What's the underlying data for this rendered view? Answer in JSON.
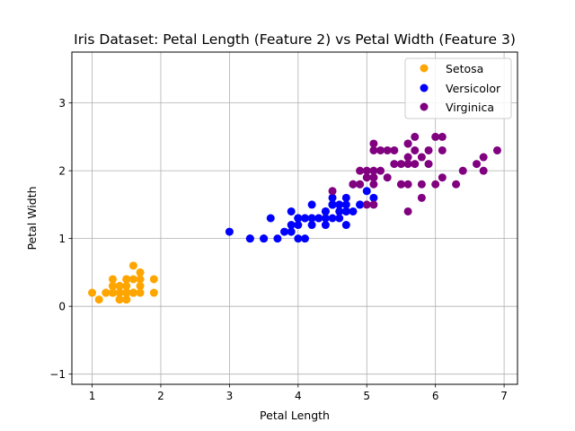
{
  "chart_data": {
    "type": "scatter",
    "title": "Iris Dataset: Petal Length (Feature 2) vs Petal Width (Feature 3)",
    "xlabel": "Petal Length",
    "ylabel": "Petal Width",
    "xlim": [
      0.705,
      7.195
    ],
    "ylim": [
      -1.15,
      3.75
    ],
    "xticks": [
      "1",
      "2",
      "3",
      "4",
      "5",
      "6",
      "7"
    ],
    "yticks": [
      "−1",
      "0",
      "1",
      "2",
      "3"
    ],
    "grid": true,
    "legend_position": "top-right",
    "series": [
      {
        "name": "Setosa",
        "color": "#ffa500",
        "points": [
          [
            1.4,
            0.2
          ],
          [
            1.4,
            0.2
          ],
          [
            1.3,
            0.2
          ],
          [
            1.5,
            0.2
          ],
          [
            1.4,
            0.2
          ],
          [
            1.7,
            0.4
          ],
          [
            1.4,
            0.3
          ],
          [
            1.5,
            0.2
          ],
          [
            1.4,
            0.2
          ],
          [
            1.5,
            0.1
          ],
          [
            1.5,
            0.2
          ],
          [
            1.6,
            0.2
          ],
          [
            1.4,
            0.1
          ],
          [
            1.1,
            0.1
          ],
          [
            1.2,
            0.2
          ],
          [
            1.5,
            0.4
          ],
          [
            1.3,
            0.4
          ],
          [
            1.4,
            0.3
          ],
          [
            1.7,
            0.3
          ],
          [
            1.5,
            0.3
          ],
          [
            1.7,
            0.2
          ],
          [
            1.5,
            0.4
          ],
          [
            1.0,
            0.2
          ],
          [
            1.7,
            0.5
          ],
          [
            1.9,
            0.2
          ],
          [
            1.6,
            0.2
          ],
          [
            1.6,
            0.4
          ],
          [
            1.5,
            0.2
          ],
          [
            1.4,
            0.2
          ],
          [
            1.6,
            0.2
          ],
          [
            1.6,
            0.2
          ],
          [
            1.5,
            0.4
          ],
          [
            1.5,
            0.1
          ],
          [
            1.4,
            0.2
          ],
          [
            1.5,
            0.2
          ],
          [
            1.2,
            0.2
          ],
          [
            1.3,
            0.2
          ],
          [
            1.4,
            0.1
          ],
          [
            1.3,
            0.2
          ],
          [
            1.5,
            0.2
          ],
          [
            1.3,
            0.3
          ],
          [
            1.3,
            0.3
          ],
          [
            1.3,
            0.2
          ],
          [
            1.6,
            0.6
          ],
          [
            1.9,
            0.4
          ],
          [
            1.4,
            0.3
          ],
          [
            1.6,
            0.2
          ],
          [
            1.4,
            0.2
          ],
          [
            1.5,
            0.2
          ],
          [
            1.4,
            0.2
          ]
        ]
      },
      {
        "name": "Versicolor",
        "color": "#0000ff",
        "points": [
          [
            4.7,
            1.4
          ],
          [
            4.5,
            1.5
          ],
          [
            4.9,
            1.5
          ],
          [
            4.0,
            1.3
          ],
          [
            4.6,
            1.5
          ],
          [
            4.5,
            1.3
          ],
          [
            4.7,
            1.6
          ],
          [
            3.3,
            1.0
          ],
          [
            4.6,
            1.3
          ],
          [
            3.9,
            1.4
          ],
          [
            3.5,
            1.0
          ],
          [
            4.2,
            1.5
          ],
          [
            4.0,
            1.0
          ],
          [
            4.7,
            1.4
          ],
          [
            3.6,
            1.3
          ],
          [
            4.4,
            1.4
          ],
          [
            4.5,
            1.5
          ],
          [
            4.1,
            1.0
          ],
          [
            4.5,
            1.5
          ],
          [
            3.9,
            1.1
          ],
          [
            4.8,
            1.8
          ],
          [
            4.0,
            1.3
          ],
          [
            4.9,
            1.5
          ],
          [
            4.7,
            1.2
          ],
          [
            4.3,
            1.3
          ],
          [
            4.4,
            1.4
          ],
          [
            4.8,
            1.4
          ],
          [
            5.0,
            1.7
          ],
          [
            4.5,
            1.5
          ],
          [
            3.5,
            1.0
          ],
          [
            3.8,
            1.1
          ],
          [
            3.7,
            1.0
          ],
          [
            3.9,
            1.2
          ],
          [
            5.1,
            1.6
          ],
          [
            4.5,
            1.5
          ],
          [
            4.5,
            1.6
          ],
          [
            4.7,
            1.5
          ],
          [
            4.4,
            1.3
          ],
          [
            4.1,
            1.3
          ],
          [
            4.0,
            1.3
          ],
          [
            4.4,
            1.2
          ],
          [
            4.6,
            1.4
          ],
          [
            4.0,
            1.2
          ],
          [
            3.3,
            1.0
          ],
          [
            4.2,
            1.3
          ],
          [
            4.2,
            1.2
          ],
          [
            4.2,
            1.3
          ],
          [
            4.3,
            1.3
          ],
          [
            3.0,
            1.1
          ],
          [
            4.1,
            1.3
          ]
        ]
      },
      {
        "name": "Virginica",
        "color": "#800080",
        "points": [
          [
            6.0,
            2.5
          ],
          [
            5.1,
            1.9
          ],
          [
            5.9,
            2.1
          ],
          [
            5.6,
            1.8
          ],
          [
            5.8,
            2.2
          ],
          [
            6.6,
            2.1
          ],
          [
            4.5,
            1.7
          ],
          [
            6.3,
            1.8
          ],
          [
            5.8,
            1.8
          ],
          [
            6.1,
            2.5
          ],
          [
            5.1,
            2.0
          ],
          [
            5.3,
            1.9
          ],
          [
            5.5,
            2.1
          ],
          [
            5.0,
            2.0
          ],
          [
            5.1,
            2.4
          ],
          [
            5.3,
            2.3
          ],
          [
            5.5,
            1.8
          ],
          [
            6.7,
            2.2
          ],
          [
            6.9,
            2.3
          ],
          [
            5.0,
            1.5
          ],
          [
            5.7,
            2.3
          ],
          [
            4.9,
            2.0
          ],
          [
            6.7,
            2.0
          ],
          [
            4.9,
            1.8
          ],
          [
            5.7,
            2.1
          ],
          [
            6.0,
            1.8
          ],
          [
            4.8,
            1.8
          ],
          [
            4.9,
            1.8
          ],
          [
            5.6,
            2.1
          ],
          [
            5.8,
            1.6
          ],
          [
            6.1,
            1.9
          ],
          [
            6.4,
            2.0
          ],
          [
            5.6,
            2.2
          ],
          [
            5.1,
            1.5
          ],
          [
            5.6,
            1.4
          ],
          [
            6.1,
            2.3
          ],
          [
            5.6,
            2.4
          ],
          [
            5.5,
            1.8
          ],
          [
            4.8,
            1.8
          ],
          [
            5.4,
            2.1
          ],
          [
            5.6,
            2.4
          ],
          [
            5.1,
            2.3
          ],
          [
            5.1,
            1.9
          ],
          [
            5.9,
            2.3
          ],
          [
            5.7,
            2.5
          ],
          [
            5.2,
            2.3
          ],
          [
            5.0,
            1.9
          ],
          [
            5.2,
            2.0
          ],
          [
            5.4,
            2.3
          ],
          [
            5.1,
            1.8
          ]
        ]
      }
    ]
  }
}
